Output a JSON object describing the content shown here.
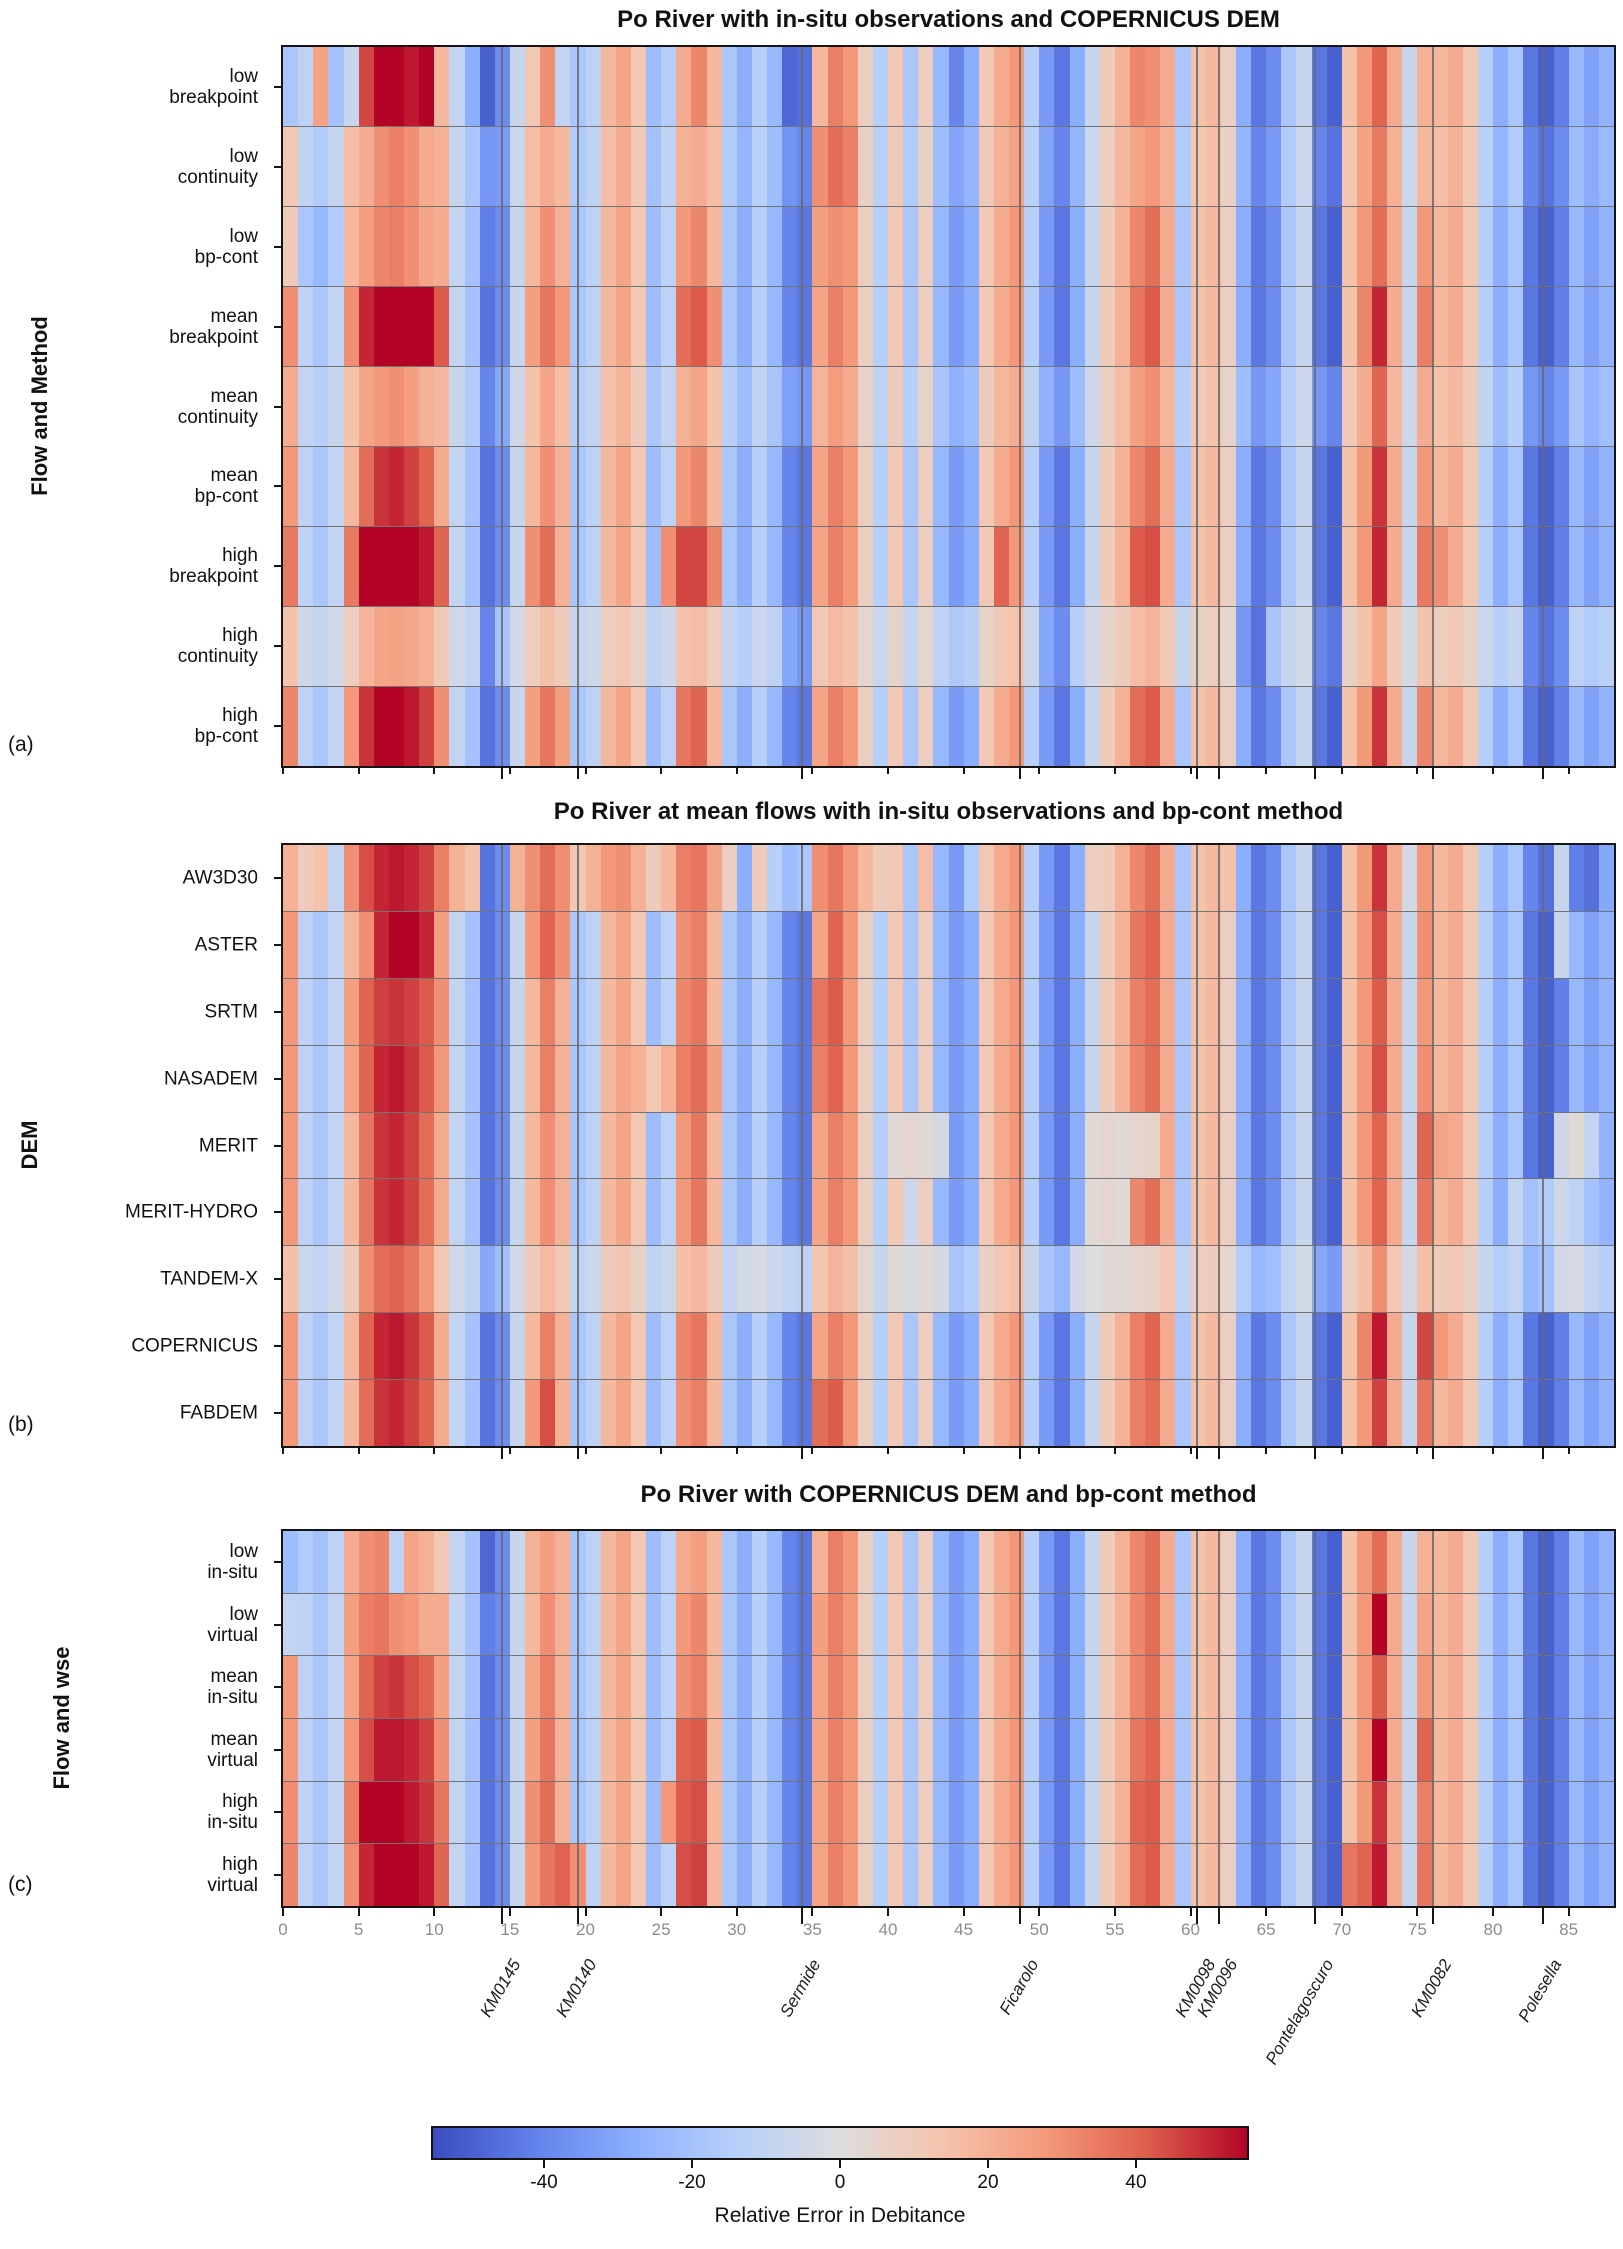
{
  "chart_data": {
    "type": "heatmap",
    "x_axis": {
      "label_km_ticks": [
        0,
        5,
        10,
        15,
        20,
        25,
        30,
        35,
        40,
        45,
        50,
        55,
        60,
        65,
        70,
        75,
        80,
        85
      ],
      "min": 0,
      "max": 88
    },
    "colormap": {
      "name": "coolwarm",
      "vmin": -55,
      "vmax": 55,
      "stops": [
        "#3b4cc0",
        "#6282ea",
        "#8db0fe",
        "#b8d0f9",
        "#dddddd",
        "#f5c4ad",
        "#f49a7b",
        "#de604d",
        "#b40426"
      ]
    },
    "colorbar": {
      "label": "Relative Error in Debitance",
      "ticks": [
        -40,
        -20,
        0,
        20,
        40
      ]
    },
    "stations": [
      {
        "name": "KM0145",
        "km": 14.5
      },
      {
        "name": "KM0140",
        "km": 19.5
      },
      {
        "name": "Sermide",
        "km": 34.3
      },
      {
        "name": "Ficarolo",
        "km": 48.7
      },
      {
        "name": "KM0098",
        "km": 60.4
      },
      {
        "name": "KM0096",
        "km": 61.9
      },
      {
        "name": "Pontelagoscuro",
        "km": 68.2
      },
      {
        "name": "KM0082",
        "km": 76.0
      },
      {
        "name": "Polesella",
        "km": 83.3
      }
    ],
    "base_profile": [
      28,
      -12,
      -18,
      -10,
      18,
      38,
      48,
      50,
      46,
      40,
      22,
      -10,
      -20,
      -45,
      -38,
      -8,
      18,
      30,
      20,
      -18,
      -12,
      18,
      24,
      12,
      -22,
      -12,
      28,
      32,
      18,
      -18,
      -28,
      -14,
      -24,
      -40,
      -44,
      24,
      34,
      28,
      8,
      -14,
      12,
      -18,
      8,
      -24,
      -34,
      -28,
      12,
      22,
      28,
      -14,
      -34,
      -44,
      -28,
      -8,
      10,
      20,
      32,
      38,
      22,
      -18,
      14,
      18,
      8,
      -28,
      -44,
      -38,
      -18,
      -8,
      -44,
      -50,
      14,
      28,
      48,
      22,
      -8,
      28,
      18,
      22,
      12,
      -14,
      -28,
      -18,
      -44,
      -50,
      -42,
      -24,
      -32,
      -26
    ],
    "panels": [
      {
        "id": "a",
        "letter": "(a)",
        "title": "Po River with in-situ observations and COPERNICUS DEM",
        "ylabel": "Flow and Method",
        "rows": [
          {
            "label": [
              "low",
              "breakpoint"
            ],
            "overrides": {
              "0": -18,
              "2": 25,
              "3": -20,
              "4": -8,
              "5": 45,
              "6": 55,
              "7": 55,
              "8": 52,
              "9": 55,
              "10": 18,
              "12": -28,
              "13": -50,
              "16": 12,
              "18": -10,
              "25": -15,
              "26": 22,
              "33": -48,
              "34": -46,
              "35": 18,
              "44": -40,
              "57": 30,
              "72": 40,
              "75": 20
            }
          },
          {
            "label": [
              "low",
              "continuity"
            ],
            "scale": 0.9,
            "overrides": {
              "0": 12,
              "5": 22,
              "6": 30,
              "7": 34,
              "8": 30,
              "9": 22,
              "13": -35,
              "17": 22,
              "26": 20,
              "27": 22,
              "35": 30,
              "36": 38,
              "37": 34,
              "56": 24,
              "57": 28,
              "72": 35,
              "75": 18
            }
          },
          {
            "label": [
              "low",
              "bp-cont"
            ],
            "overrides": {
              "0": 10,
              "1": -18,
              "2": -24,
              "3": -16,
              "5": 26,
              "6": 32,
              "7": 34,
              "8": 30,
              "9": 24,
              "13": -42,
              "35": 26,
              "36": 30,
              "72": 38
            }
          },
          {
            "label": [
              "mean",
              "breakpoint"
            ],
            "overrides": {
              "0": 30,
              "4": 30,
              "5": 50,
              "6": 55,
              "7": 55,
              "8": 55,
              "9": 55,
              "10": 42,
              "16": 26,
              "17": 36,
              "18": 28,
              "26": 38,
              "27": 42,
              "28": 30,
              "56": 36,
              "57": 42,
              "71": 32,
              "72": 50,
              "75": 34
            }
          },
          {
            "label": [
              "mean",
              "continuity"
            ],
            "scale": 0.8,
            "overrides": {
              "5": 24,
              "6": 28,
              "7": 30,
              "8": 26,
              "9": 20,
              "13": -40,
              "26": 20,
              "27": 24,
              "57": 30,
              "72": 40
            }
          },
          {
            "label": [
              "mean",
              "bp-cont"
            ],
            "overrides": {}
          },
          {
            "label": [
              "high",
              "breakpoint"
            ],
            "overrides": {
              "0": 35,
              "4": 35,
              "5": 55,
              "6": 55,
              "7": 55,
              "8": 55,
              "9": 52,
              "10": 40,
              "16": 30,
              "17": 38,
              "25": 30,
              "26": 45,
              "27": 45,
              "28": 32,
              "47": 40,
              "56": 42,
              "57": 44,
              "72": 50,
              "75": 35,
              "76": 30
            }
          },
          {
            "label": [
              "high",
              "continuity"
            ],
            "scale": 0.5,
            "overrides": {
              "13": -40,
              "33": -30,
              "34": -35,
              "50": -30,
              "51": -38,
              "63": -35,
              "64": -45,
              "68": -40,
              "69": -44,
              "82": -40,
              "83": -45,
              "84": -38
            }
          },
          {
            "label": [
              "high",
              "bp-cont"
            ],
            "overrides": {
              "0": 32,
              "4": 28,
              "5": 48,
              "6": 55,
              "7": 55,
              "8": 52,
              "9": 46,
              "10": 30,
              "16": 26,
              "17": 36,
              "18": 26,
              "26": 36,
              "27": 40,
              "56": 38,
              "57": 42,
              "72": 48,
              "75": 32
            }
          }
        ]
      },
      {
        "id": "b",
        "letter": "(b)",
        "title": "Po River at mean flows with in-situ observations and bp-cont method",
        "ylabel": "DEM",
        "rows": [
          {
            "label": [
              "AW3D30"
            ],
            "overrides": {
              "0": 20,
              "1": 10,
              "2": 14,
              "4": 30,
              "5": 44,
              "6": 50,
              "7": 52,
              "8": 50,
              "9": 46,
              "10": 34,
              "11": 20,
              "12": 14,
              "15": 20,
              "16": 30,
              "17": 38,
              "18": 30,
              "19": 12,
              "20": 20,
              "21": 28,
              "22": 30,
              "23": 20,
              "24": 10,
              "25": 18,
              "26": 34,
              "27": 36,
              "28": 24,
              "29": 8,
              "31": 10,
              "32": -14,
              "33": -22,
              "34": -18,
              "35": 30,
              "36": 36,
              "38": 18,
              "39": 10,
              "42": 16,
              "45": -16,
              "53": 8,
              "62": 14,
              "74": -4,
              "82": -40,
              "83": -46,
              "84": -8,
              "85": -42,
              "86": -46,
              "87": -30
            }
          },
          {
            "label": [
              "ASTER"
            ],
            "overrides": {
              "5": 30,
              "6": 50,
              "7": 55,
              "8": 55,
              "9": 50,
              "10": 26,
              "16": 28,
              "17": 40,
              "18": 30,
              "26": 30,
              "27": 34,
              "36": 40,
              "56": 36,
              "57": 40,
              "72": 44,
              "75": 30,
              "84": -8
            }
          },
          {
            "label": [
              "SRTM"
            ],
            "overrides": {
              "4": 26,
              "5": 40,
              "6": 46,
              "7": 48,
              "8": 46,
              "9": 42,
              "10": 30,
              "17": 34,
              "26": 32,
              "27": 36,
              "35": 36,
              "36": 42,
              "56": 34,
              "72": 42
            }
          },
          {
            "label": [
              "NASADEM"
            ],
            "overrides": {
              "4": 24,
              "5": 40,
              "6": 50,
              "7": 52,
              "8": 48,
              "9": 42,
              "10": 28,
              "17": 34,
              "23": 20,
              "24": 12,
              "25": 20,
              "26": 34,
              "27": 38,
              "28": 26,
              "35": 34,
              "36": 40,
              "72": 44,
              "75": 30
            }
          },
          {
            "label": [
              "MERIT"
            ],
            "overrides": {
              "5": 36,
              "6": 48,
              "7": 50,
              "8": 46,
              "9": 38,
              "27": 36,
              "40": 2,
              "41": 4,
              "42": 2,
              "43": -4,
              "53": 2,
              "54": 4,
              "55": 2,
              "56": 4,
              "57": 6,
              "72": 40,
              "75": 40,
              "76": 24,
              "84": -6,
              "85": 2,
              "86": -10
            }
          },
          {
            "label": [
              "MERIT-HYDRO"
            ],
            "overrides": {
              "5": 36,
              "6": 48,
              "7": 50,
              "8": 46,
              "9": 38,
              "27": 36,
              "41": -6,
              "53": 2,
              "54": 4,
              "55": 2,
              "72": 40,
              "75": 36,
              "81": -10,
              "82": -20,
              "83": -16,
              "84": -6,
              "85": -12,
              "86": -20
            }
          },
          {
            "label": [
              "TANDEM-X"
            ],
            "scale": 0.55,
            "overrides": {
              "5": 30,
              "6": 38,
              "7": 40,
              "8": 36,
              "9": 28,
              "13": -30,
              "30": -4,
              "31": -2,
              "32": -6,
              "33": -10,
              "34": -12,
              "40": 2,
              "41": -2,
              "42": 2,
              "43": -4,
              "52": -4,
              "53": 0,
              "54": 2,
              "55": 2,
              "56": 4,
              "57": 6,
              "68": -30,
              "69": -34,
              "72": 30,
              "83": -20,
              "84": -4,
              "85": -2,
              "86": -10
            }
          },
          {
            "label": [
              "COPERNICUS"
            ],
            "overrides": {
              "5": 40,
              "6": 50,
              "7": 52,
              "8": 48,
              "9": 42,
              "17": 34,
              "26": 32,
              "27": 36,
              "56": 34,
              "57": 40,
              "71": 32,
              "72": 52,
              "75": 45,
              "76": 28
            }
          },
          {
            "label": [
              "FABDEM"
            ],
            "overrides": {
              "5": 38,
              "6": 48,
              "7": 50,
              "8": 46,
              "9": 40,
              "16": 28,
              "17": 44,
              "26": 30,
              "27": 34,
              "35": 38,
              "36": 42,
              "56": 34,
              "57": 38,
              "72": 46,
              "75": 36
            }
          }
        ]
      },
      {
        "id": "c",
        "letter": "(c)",
        "title": "Po River with COPERNICUS DEM and bp-cont method",
        "ylabel": "Flow and wse",
        "rows": [
          {
            "label": [
              "low",
              "in-situ"
            ],
            "overrides": {
              "0": -22,
              "1": -16,
              "2": -20,
              "3": -12,
              "4": 22,
              "5": 30,
              "6": 32,
              "7": -12,
              "8": 24,
              "9": 20,
              "10": 12,
              "13": -48,
              "16": 20,
              "17": 26,
              "26": 22,
              "27": 26,
              "35": 20,
              "72": 38,
              "75": 20
            }
          },
          {
            "label": [
              "low",
              "virtual"
            ],
            "overrides": {
              "0": -10,
              "4": 26,
              "5": 34,
              "6": 36,
              "7": 30,
              "8": 28,
              "9": 22,
              "13": -42,
              "35": 26,
              "72": 55,
              "75": 24
            }
          },
          {
            "label": [
              "mean",
              "in-situ"
            ],
            "overrides": {
              "4": 24,
              "5": 40,
              "6": 46,
              "7": 48,
              "8": 44,
              "9": 40,
              "10": 26,
              "16": 24,
              "17": 34,
              "26": 30,
              "27": 34,
              "72": 42
            }
          },
          {
            "label": [
              "mean",
              "virtual"
            ],
            "overrides": {
              "4": 28,
              "5": 44,
              "6": 52,
              "7": 52,
              "8": 50,
              "9": 46,
              "10": 30,
              "16": 26,
              "17": 36,
              "26": 40,
              "27": 42,
              "56": 36,
              "57": 40,
              "72": 55,
              "75": 40
            }
          },
          {
            "label": [
              "high",
              "in-situ"
            ],
            "overrides": {
              "0": 30,
              "4": 34,
              "5": 55,
              "6": 55,
              "7": 55,
              "8": 52,
              "9": 48,
              "10": 36,
              "16": 30,
              "17": 38,
              "25": 28,
              "26": 42,
              "27": 44,
              "56": 40,
              "57": 42,
              "72": 48,
              "75": 34
            }
          },
          {
            "label": [
              "high",
              "virtual"
            ],
            "overrides": {
              "0": 32,
              "4": 30,
              "5": 50,
              "6": 55,
              "7": 55,
              "8": 55,
              "9": 52,
              "10": 40,
              "16": 28,
              "17": 36,
              "18": 40,
              "19": 30,
              "26": 44,
              "27": 46,
              "56": 38,
              "57": 42,
              "70": 36,
              "71": 40,
              "72": 52,
              "75": 36
            }
          }
        ]
      }
    ]
  }
}
